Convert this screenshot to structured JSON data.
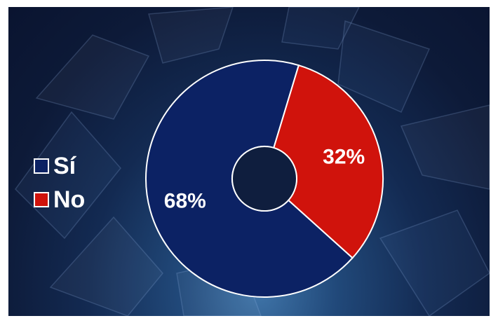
{
  "chart_data": {
    "type": "pie",
    "donut": true,
    "categories": [
      "Sí",
      "No"
    ],
    "values": [
      68,
      32
    ],
    "value_labels": [
      "68%",
      "32%"
    ],
    "colors": [
      "#0c2264",
      "#d0130c"
    ],
    "legend_placement": "left",
    "title": ""
  }
}
